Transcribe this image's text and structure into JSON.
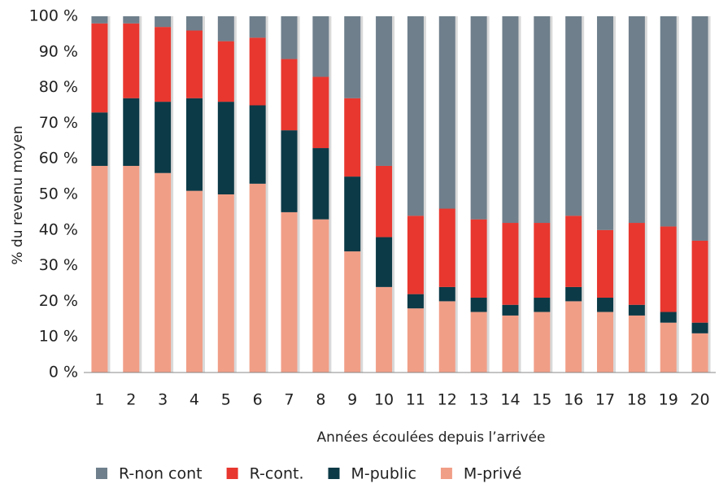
{
  "chart_data": {
    "type": "stacked_bar",
    "categories": [
      "1",
      "2",
      "3",
      "4",
      "5",
      "6",
      "7",
      "8",
      "9",
      "10",
      "11",
      "12",
      "13",
      "14",
      "15",
      "16",
      "17",
      "18",
      "19",
      "20"
    ],
    "series": [
      {
        "name": "R-non cont",
        "color": "#6f7f8c",
        "values": [
          2,
          2,
          3,
          4,
          7,
          6,
          12,
          17,
          23,
          42,
          56,
          54,
          57,
          58,
          58,
          56,
          60,
          58,
          59,
          63
        ]
      },
      {
        "name": "R-cont.",
        "color": "#e8372f",
        "values": [
          25,
          21,
          21,
          19,
          17,
          19,
          20,
          20,
          22,
          20,
          22,
          22,
          22,
          23,
          21,
          20,
          19,
          23,
          24,
          23
        ]
      },
      {
        "name": "M-public",
        "color": "#0c3a47",
        "values": [
          15,
          19,
          20,
          26,
          26,
          22,
          23,
          20,
          21,
          14,
          4,
          4,
          4,
          3,
          4,
          4,
          4,
          3,
          3,
          3
        ]
      },
      {
        "name": "M-privé",
        "color": "#f19e87",
        "values": [
          58,
          58,
          56,
          51,
          50,
          53,
          45,
          43,
          34,
          24,
          18,
          20,
          17,
          16,
          17,
          20,
          17,
          16,
          14,
          11
        ]
      }
    ],
    "ylabel": "% du revenu moyen",
    "xlabel": "Années écoulées depuis l’arrivée",
    "ylim": [
      0,
      100
    ],
    "yticks": [
      {
        "value": 0,
        "label": "0 %"
      },
      {
        "value": 10,
        "label": "10 %"
      },
      {
        "value": 20,
        "label": "20 %"
      },
      {
        "value": 30,
        "label": "30 %"
      },
      {
        "value": 40,
        "label": "40 %"
      },
      {
        "value": 50,
        "label": "50 %"
      },
      {
        "value": 60,
        "label": "60 %"
      },
      {
        "value": 70,
        "label": "70 %"
      },
      {
        "value": 80,
        "label": "80 %"
      },
      {
        "value": 90,
        "label": "90 %"
      },
      {
        "value": 100,
        "label": "100 %"
      }
    ]
  }
}
